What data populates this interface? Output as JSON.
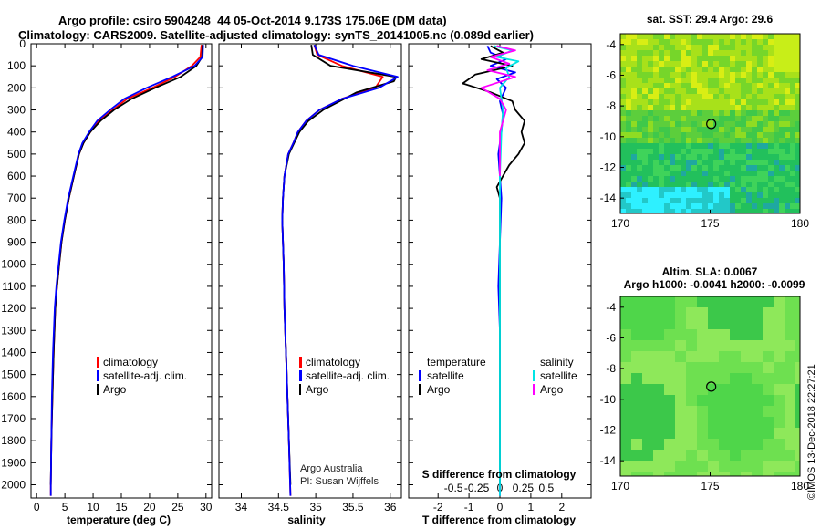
{
  "header": {
    "line1": "Argo profile: csiro 5904248_44 05-Oct-2014 9.173S 175.06E (DM data)",
    "line2": "Climatology: CARS2009. Satellite-adjusted climatology: synTS_20141005.nc (0.089d earlier)"
  },
  "credits": {
    "org": "Argo Australia",
    "pi": "PI: Susan Wijffels",
    "stamp": "©IMOS 13-Dec-2018 22:27:21"
  },
  "colors": {
    "climatology": "#ff0000",
    "satellite": "#0000ff",
    "argo": "#000000",
    "sal_satellite": "#00e5e5",
    "sal_argo": "#ff00ff"
  },
  "chart_data": [
    {
      "id": "temperature",
      "type": "line",
      "xlabel": "temperature (deg C)",
      "ylabel": "",
      "xlim": [
        -1,
        31
      ],
      "ylim": [
        2060,
        0
      ],
      "xticks": [
        0,
        5,
        10,
        15,
        20,
        25,
        30
      ],
      "xtick_labels": [
        "0",
        "5",
        "10",
        "15",
        "20",
        "25",
        "30"
      ],
      "yticks": [
        0,
        100,
        200,
        300,
        400,
        500,
        600,
        700,
        800,
        900,
        1000,
        1100,
        1200,
        1300,
        1400,
        1500,
        1600,
        1700,
        1800,
        1900,
        2000
      ],
      "yaxis_labels": [
        "0",
        "100",
        "200",
        "300",
        "400",
        "500",
        "600",
        "700",
        "800",
        "900",
        "1000",
        "1100",
        "1200",
        "1300",
        "1400",
        "1500",
        "1600",
        "1700",
        "1800",
        "1900",
        "2000"
      ],
      "legend": [
        "climatology",
        "satellite-adj. clim.",
        "Argo"
      ],
      "series": [
        {
          "name": "climatology",
          "x": [
            29.2,
            29.0,
            27.5,
            24.5,
            20.5,
            16.0,
            13.5,
            11.0,
            9.5,
            8.3,
            7.5,
            6.6,
            5.7,
            5.0,
            4.4,
            4.0,
            3.6,
            3.3,
            3.0,
            2.8,
            2.6,
            2.5,
            2.5
          ],
          "depth": [
            5,
            60,
            100,
            150,
            200,
            250,
            300,
            350,
            400,
            450,
            500,
            600,
            700,
            800,
            900,
            1000,
            1100,
            1200,
            1400,
            1600,
            1800,
            2000,
            2050
          ]
        },
        {
          "name": "satellite-adj. clim.",
          "x": [
            29.5,
            29.4,
            28.0,
            24.0,
            19.5,
            15.5,
            13.0,
            10.7,
            9.3,
            8.1,
            7.4,
            6.5,
            5.6,
            4.9,
            4.3,
            3.9,
            3.5,
            3.2,
            2.9,
            2.7,
            2.6,
            2.5,
            2.5
          ],
          "depth": [
            5,
            60,
            100,
            150,
            200,
            250,
            300,
            350,
            400,
            450,
            500,
            600,
            700,
            800,
            900,
            1000,
            1100,
            1200,
            1400,
            1600,
            1800,
            2000,
            2050
          ]
        },
        {
          "name": "Argo",
          "x": [
            29.4,
            29.3,
            28.3,
            25.5,
            21.0,
            16.8,
            13.7,
            11.3,
            9.5,
            8.3,
            7.5,
            6.6,
            5.7,
            5.0,
            4.4,
            4.0,
            3.6,
            3.3,
            3.0,
            2.8,
            2.6,
            2.5
          ],
          "depth": [
            5,
            60,
            100,
            150,
            200,
            250,
            300,
            350,
            400,
            450,
            500,
            600,
            700,
            800,
            900,
            1000,
            1100,
            1200,
            1400,
            1600,
            1800,
            2000
          ]
        }
      ]
    },
    {
      "id": "salinity",
      "type": "line",
      "xlabel": "salinity",
      "xlim": [
        33.7,
        36.15
      ],
      "ylim": [
        2060,
        0
      ],
      "xticks": [
        34,
        34.5,
        35,
        35.5,
        36
      ],
      "xtick_labels": [
        "34",
        "34.5",
        "35",
        "35.5",
        "36"
      ],
      "legend": [
        "climatology",
        "satellite-adj. clim.",
        "Argo"
      ],
      "series": [
        {
          "name": "climatology",
          "x": [
            34.98,
            35.02,
            35.35,
            35.9,
            35.8,
            35.35,
            35.05,
            34.87,
            34.76,
            34.7,
            34.63,
            34.58,
            34.56,
            34.55,
            34.56,
            34.57,
            34.58,
            34.6,
            34.62,
            34.64,
            34.66
          ],
          "depth": [
            5,
            50,
            100,
            150,
            200,
            250,
            300,
            350,
            400,
            450,
            500,
            600,
            700,
            800,
            900,
            1000,
            1200,
            1400,
            1600,
            1800,
            2050
          ]
        },
        {
          "name": "satellite-adj. clim.",
          "x": [
            34.98,
            35.04,
            35.5,
            36.1,
            35.85,
            35.35,
            35.05,
            34.87,
            34.76,
            34.7,
            34.63,
            34.58,
            34.56,
            34.55,
            34.56,
            34.57,
            34.58,
            34.6,
            34.62,
            34.64,
            34.66
          ],
          "depth": [
            5,
            50,
            100,
            150,
            200,
            250,
            300,
            350,
            400,
            450,
            500,
            600,
            700,
            800,
            900,
            1000,
            1200,
            1400,
            1600,
            1800,
            2050
          ]
        },
        {
          "name": "Argo",
          "x": [
            34.94,
            34.96,
            35.2,
            36.08,
            36.05,
            35.55,
            35.1,
            34.9,
            34.78,
            34.71,
            34.64,
            34.58,
            34.56,
            34.55,
            34.56,
            34.57,
            34.58,
            34.6,
            34.62,
            34.64,
            34.66
          ],
          "depth": [
            5,
            50,
            100,
            150,
            170,
            220,
            300,
            350,
            400,
            450,
            500,
            600,
            700,
            800,
            900,
            1000,
            1200,
            1400,
            1600,
            1800,
            2000
          ]
        }
      ]
    },
    {
      "id": "difference",
      "type": "line",
      "xlabel": "T difference from climatology",
      "xlabel2": "S difference from climatology",
      "xlim": [
        -2.95,
        2.95
      ],
      "ylim": [
        2060,
        0
      ],
      "xticks": [
        -2,
        -1,
        0,
        1,
        2
      ],
      "xtick_labels": [
        "-2",
        "-1",
        "0",
        "1",
        "2"
      ],
      "x2ticks": [
        -1.5,
        -0.75,
        0,
        0.75,
        1.5
      ],
      "x2tick_labels": [
        "-0.5",
        "-0.25",
        "0",
        "0.25",
        "0.5"
      ],
      "legend_temperature_title": "temperature",
      "legend_salinity_title": "salinity",
      "legend_temperature": [
        "satellite",
        "Argo"
      ],
      "legend_salinity": [
        "satellite",
        "Argo"
      ],
      "series": [
        {
          "name": "T satellite",
          "x": [
            -0.4,
            -0.3,
            0.2,
            -0.3,
            0.5,
            -0.1,
            0.2,
            0.0,
            0.1,
            0.05,
            -0.05,
            0.0,
            0.05,
            0.0,
            -0.05,
            0.0,
            0.0,
            0.0,
            0.0
          ],
          "depth": [
            10,
            40,
            70,
            100,
            130,
            160,
            200,
            260,
            320,
            400,
            500,
            600,
            700,
            900,
            1100,
            1300,
            1600,
            1900,
            2050
          ]
        },
        {
          "name": "T Argo",
          "x": [
            -0.3,
            0.1,
            -0.6,
            0.4,
            -0.8,
            -1.2,
            -0.3,
            0.4,
            0.5,
            0.8,
            0.7,
            0.8,
            0.6,
            0.3,
            0.1,
            -0.1,
            0.0,
            0.0,
            0.0,
            0.0,
            0.0,
            0.0
          ],
          "depth": [
            10,
            40,
            70,
            100,
            140,
            180,
            220,
            260,
            300,
            350,
            400,
            450,
            500,
            550,
            600,
            650,
            700,
            900,
            1200,
            1500,
            1800,
            2000
          ]
        },
        {
          "name": "S satellite",
          "x": [
            -0.2,
            0.4,
            -0.1,
            0.6,
            0.2,
            0.3,
            0.0,
            0.1,
            0.05,
            0.0,
            0.0,
            0.0,
            0.0,
            0.0,
            0.0
          ],
          "depth": [
            10,
            30,
            60,
            80,
            110,
            150,
            200,
            300,
            400,
            600,
            800,
            1100,
            1400,
            1700,
            2050
          ]
        },
        {
          "name": "S Argo",
          "x": [
            -0.1,
            0.5,
            -0.3,
            0.3,
            -0.4,
            0.5,
            -0.6,
            0.0,
            0.2,
            0.0,
            0.0,
            0.0,
            0.0
          ],
          "depth": [
            10,
            30,
            60,
            90,
            120,
            150,
            200,
            250,
            300,
            400,
            500,
            550,
            600
          ]
        }
      ]
    }
  ],
  "maps": [
    {
      "id": "sst-map",
      "title": "sat. SST: 29.4 Argo: 29.6",
      "yticks": [
        -4,
        -6,
        -8,
        -10,
        -12,
        -14
      ],
      "ytick_labels": [
        "-4",
        "-6",
        "-8",
        "-10",
        "-12",
        "-14"
      ],
      "xticks": [
        170,
        175,
        180
      ],
      "xtick_labels": [
        "170",
        "175",
        "180"
      ],
      "marker": {
        "lon": 175.06,
        "lat": -9.173
      }
    },
    {
      "id": "sla-map",
      "title1": "Altim. SLA: 0.0067",
      "title2": "Argo h1000: -0.0041 h2000: -0.0099",
      "yticks": [
        -4,
        -6,
        -8,
        -10,
        -12,
        -14
      ],
      "ytick_labels": [
        "-4",
        "-6",
        "-8",
        "-10",
        "-12",
        "-14"
      ],
      "xticks": [
        170,
        175,
        180
      ],
      "xtick_labels": [
        "170",
        "175",
        "180"
      ],
      "marker": {
        "lon": 175.06,
        "lat": -9.173
      }
    }
  ]
}
